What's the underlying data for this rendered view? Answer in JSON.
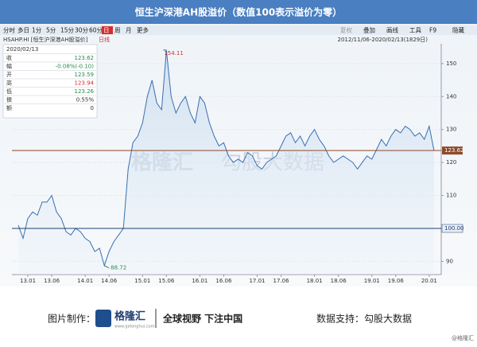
{
  "title_bar": "恒生沪深港AH股溢价（数值100表示溢价为零）",
  "toolbar": [
    "分时",
    "多日",
    "1分",
    "5分",
    "15分",
    "30分",
    "60分",
    "日",
    "周",
    "月",
    "更多"
  ],
  "toolbar_right": [
    "复权",
    "叠加",
    "画线",
    "工具",
    "F9",
    "隐藏"
  ],
  "symbol": "HSAHP.HI [恒生沪深港AH股溢价]",
  "period": "日线",
  "range_text": "2012/11/06-2020/02/13(1829日)",
  "info": {
    "date": "2020/02/13",
    "rows": [
      [
        "收",
        "123.62"
      ],
      [
        "幅",
        "-0.08%(-0.10)"
      ],
      [
        "开",
        "123.59"
      ],
      [
        "高",
        "123.94"
      ],
      [
        "低",
        "123.26"
      ],
      [
        "振",
        "0.55%"
      ],
      [
        "额",
        "0"
      ]
    ]
  },
  "watermark": [
    "格隆汇",
    "勾股大数据"
  ],
  "footer": {
    "made_by": "图片制作：",
    "logo": "格隆汇",
    "logo_url": "www.gelonghui.com",
    "slogan": "全球视野 下注中国",
    "data_source": "数据支持：勾股大数据",
    "credit": "@格隆汇"
  },
  "chart_data": {
    "type": "line",
    "categories": [
      null,
      null,
      "13.01",
      null,
      null,
      null,
      null,
      "13.06",
      null,
      null,
      null,
      null,
      null,
      null,
      "14.01",
      null,
      null,
      null,
      null,
      "14.06",
      null,
      null,
      null,
      null,
      null,
      null,
      "15.01",
      null,
      null,
      null,
      null,
      "15.06",
      null,
      null,
      null,
      null,
      null,
      null,
      "16.01",
      null,
      null,
      null,
      null,
      "16.06",
      null,
      null,
      null,
      null,
      null,
      null,
      "17.01",
      null,
      null,
      null,
      null,
      "17.06",
      null,
      null,
      null,
      null,
      null,
      null,
      "18.01",
      null,
      null,
      null,
      null,
      "18.06",
      null,
      null,
      null,
      null,
      null,
      null,
      "19.01",
      null,
      null,
      null,
      null,
      "19.06",
      null,
      null,
      null,
      null,
      null,
      null,
      "20.01",
      null
    ],
    "series": [
      {
        "name": "HSAHP.HI",
        "color": "#3a6fb0",
        "values": [
          101,
          97,
          103,
          105,
          104,
          108,
          108,
          110,
          105,
          103,
          99,
          98,
          100,
          99,
          97,
          96,
          93,
          94,
          88.72,
          93,
          96,
          98,
          100,
          118,
          126,
          128,
          132,
          140,
          145,
          138,
          136,
          154.11,
          140,
          135,
          138,
          140,
          135,
          132,
          140,
          138,
          132,
          128,
          125,
          126,
          122,
          120,
          121,
          120,
          123,
          122,
          119,
          118,
          120,
          121,
          122,
          125,
          128,
          129,
          126,
          128,
          125,
          128,
          130,
          127,
          125,
          122,
          120,
          121,
          122,
          121,
          120,
          118,
          120,
          122,
          121,
          124,
          127,
          125,
          128,
          130,
          129,
          131,
          130,
          128,
          129,
          127,
          131,
          123.62
        ]
      }
    ],
    "reference_line": {
      "value": 100,
      "label": "100.00",
      "color": "#1f3f73"
    },
    "last_line_color": "#8b4a2b",
    "ylim": [
      86,
      156
    ],
    "yticks": [
      90,
      100,
      110,
      120,
      130,
      140,
      150
    ],
    "grid": true
  }
}
